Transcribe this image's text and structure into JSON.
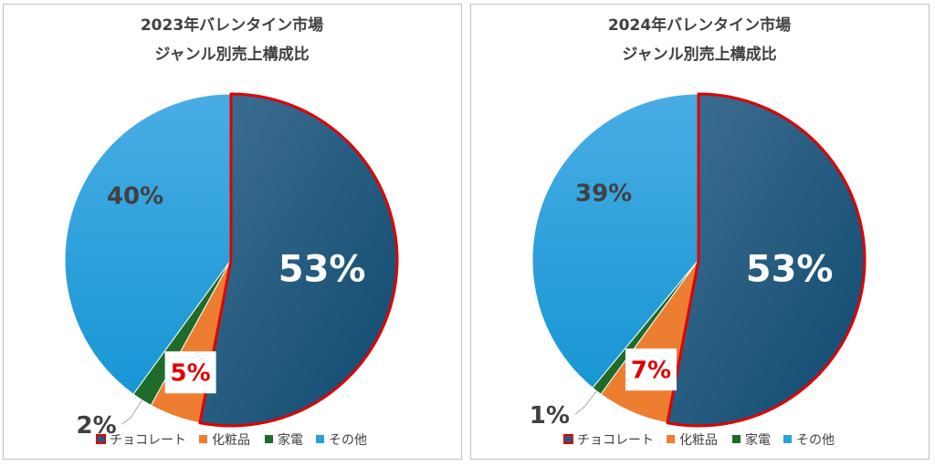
{
  "chart_data": [
    {
      "type": "pie",
      "title": "2023年バレンタイン市場",
      "subtitle": "ジャンル別売上構成比",
      "categories": [
        "チョコレート",
        "化粧品",
        "家電",
        "その他"
      ],
      "values": [
        53,
        5,
        2,
        40
      ],
      "data_labels": [
        "53%",
        "5%",
        "2%",
        "40%"
      ],
      "colors": [
        "#1b5e86",
        "#ed7d31",
        "#1e6b2a",
        "#2aa1db"
      ],
      "highlight": {
        "category": "チョコレート",
        "border_color": "#e00000"
      },
      "legend_position": "bottom"
    },
    {
      "type": "pie",
      "title": "2024年バレンタイン市場",
      "subtitle": "ジャンル別売上構成比",
      "categories": [
        "チョコレート",
        "化粧品",
        "家電",
        "その他"
      ],
      "values": [
        53,
        7,
        1,
        39
      ],
      "data_labels": [
        "53%",
        "7%",
        "1%",
        "39%"
      ],
      "colors": [
        "#1b5e86",
        "#ed7d31",
        "#1e6b2a",
        "#2aa1db"
      ],
      "highlight": {
        "category": "チョコレート",
        "border_color": "#e00000"
      },
      "legend_position": "bottom"
    }
  ]
}
